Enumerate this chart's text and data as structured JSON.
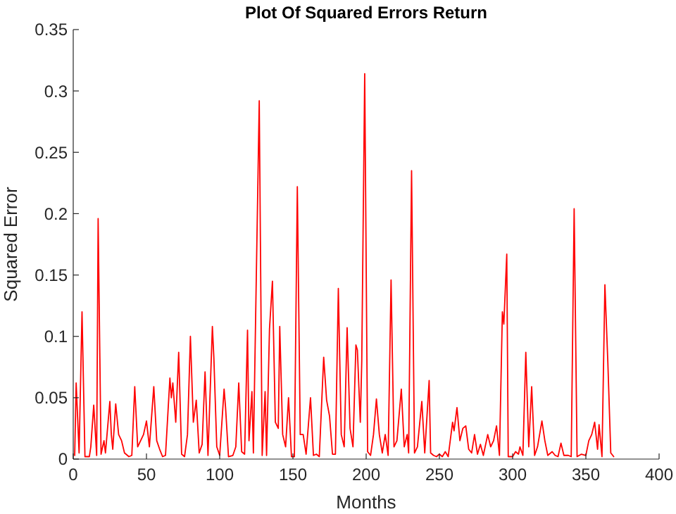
{
  "chart_data": {
    "type": "line",
    "title": "Plot Of Squared Errors Return",
    "xlabel": "Months",
    "ylabel": "Squared Error",
    "xlim": [
      0,
      400
    ],
    "xticks": [
      0,
      50,
      100,
      150,
      200,
      250,
      300,
      350,
      400
    ],
    "ylim": [
      0,
      0.35
    ],
    "yticks": [
      0,
      0.05,
      0.1,
      0.15,
      0.2,
      0.25,
      0.3,
      0.35
    ],
    "grid": false,
    "marker": "none",
    "line_style": "solid",
    "series": [
      {
        "color": "#ff0000",
        "x": [
          1,
          2,
          4,
          6,
          8,
          11,
          12,
          14,
          16,
          17,
          19,
          21,
          22,
          25,
          26,
          27,
          29,
          31,
          33,
          35,
          38,
          40,
          42,
          44,
          46,
          48,
          50,
          52,
          55,
          57,
          59,
          61,
          63,
          66,
          67,
          68,
          70,
          72,
          74,
          76,
          78,
          80,
          82,
          84,
          86,
          88,
          90,
          92,
          95,
          96,
          98,
          100,
          103,
          104,
          106,
          109,
          111,
          113,
          115,
          117,
          119,
          120,
          122,
          123,
          125,
          127,
          129,
          131,
          132,
          134,
          136,
          138,
          140,
          141,
          143,
          145,
          147,
          149,
          151,
          153,
          155,
          157,
          159,
          162,
          164,
          166,
          168,
          171,
          173,
          175,
          177,
          179,
          181,
          183,
          185,
          187,
          189,
          191,
          193,
          194,
          196,
          197,
          199,
          201,
          203,
          205,
          207,
          209,
          211,
          213,
          215,
          217,
          219,
          221,
          224,
          226,
          228,
          229,
          231,
          233,
          235,
          238,
          240,
          243,
          244,
          246,
          248,
          250,
          252,
          254,
          256,
          259,
          260,
          262,
          264,
          266,
          268,
          270,
          272,
          274,
          276,
          278,
          280,
          283,
          285,
          287,
          289,
          291,
          293,
          294,
          296,
          297,
          300,
          302,
          304,
          305,
          307,
          309,
          311,
          313,
          315,
          317,
          320,
          322,
          324,
          327,
          329,
          331,
          333,
          335,
          338,
          340,
          342,
          344,
          347,
          350,
          352,
          354,
          356,
          358,
          359,
          361,
          363,
          365,
          367,
          369
        ],
        "values": [
          0.003,
          0.062,
          0.005,
          0.12,
          0.002,
          0.002,
          0.01,
          0.044,
          0.003,
          0.196,
          0.004,
          0.015,
          0.005,
          0.047,
          0.02,
          0.008,
          0.045,
          0.02,
          0.015,
          0.005,
          0.002,
          0.003,
          0.059,
          0.01,
          0.015,
          0.02,
          0.031,
          0.01,
          0.059,
          0.015,
          0.008,
          0.002,
          0.003,
          0.066,
          0.05,
          0.062,
          0.03,
          0.087,
          0.004,
          0.002,
          0.02,
          0.1,
          0.03,
          0.048,
          0.005,
          0.012,
          0.071,
          0.003,
          0.108,
          0.083,
          0.01,
          0.003,
          0.057,
          0.042,
          0.002,
          0.003,
          0.01,
          0.062,
          0.006,
          0.004,
          0.105,
          0.015,
          0.055,
          0.005,
          0.149,
          0.292,
          0.003,
          0.055,
          0.003,
          0.106,
          0.145,
          0.03,
          0.025,
          0.108,
          0.02,
          0.01,
          0.05,
          0.002,
          0.002,
          0.222,
          0.02,
          0.02,
          0.004,
          0.05,
          0.003,
          0.004,
          0.002,
          0.083,
          0.048,
          0.035,
          0.004,
          0.004,
          0.139,
          0.02,
          0.01,
          0.107,
          0.025,
          0.01,
          0.093,
          0.089,
          0.03,
          0.08,
          0.314,
          0.006,
          0.003,
          0.02,
          0.049,
          0.02,
          0.005,
          0.02,
          0.003,
          0.146,
          0.01,
          0.015,
          0.057,
          0.01,
          0.02,
          0.005,
          0.235,
          0.005,
          0.01,
          0.047,
          0.005,
          0.064,
          0.005,
          0.003,
          0.002,
          0.004,
          0.002,
          0.006,
          0.002,
          0.03,
          0.023,
          0.042,
          0.015,
          0.025,
          0.027,
          0.008,
          0.005,
          0.02,
          0.004,
          0.012,
          0.003,
          0.02,
          0.01,
          0.015,
          0.027,
          0.003,
          0.12,
          0.11,
          0.167,
          0.002,
          0.002,
          0.006,
          0.004,
          0.01,
          0.003,
          0.087,
          0.01,
          0.059,
          0.003,
          0.01,
          0.031,
          0.015,
          0.003,
          0.006,
          0.003,
          0.002,
          0.013,
          0.003,
          0.003,
          0.002,
          0.204,
          0.002,
          0.004,
          0.003,
          0.015,
          0.02,
          0.03,
          0.008,
          0.028,
          0.002,
          0.142,
          0.079,
          0.005,
          0.002
        ]
      }
    ]
  }
}
